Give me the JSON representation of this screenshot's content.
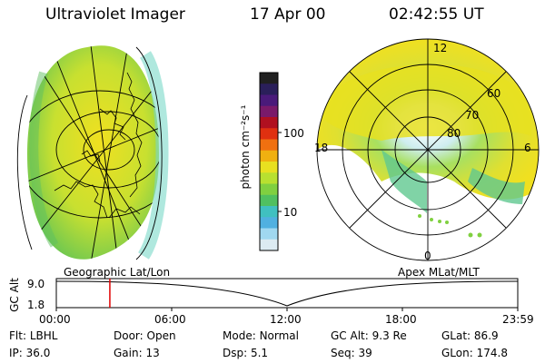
{
  "header": {
    "instrument": "Ultraviolet Imager",
    "date": "17 Apr 00",
    "time": "02:42:55 UT"
  },
  "colorbar": {
    "unit_label": "photon cm⁻²s⁻¹",
    "ticks": [
      "100",
      "10"
    ],
    "colors": [
      "#202020",
      "#2a1f5a",
      "#4a1a7a",
      "#7a1a6a",
      "#b01020",
      "#e03010",
      "#f07010",
      "#f0b010",
      "#e8e020",
      "#b8e030",
      "#80d040",
      "#50c060",
      "#40c0c0",
      "#50b0e0",
      "#a0d8f0",
      "#dcebf2"
    ]
  },
  "polar": {
    "labels": [
      "12",
      "18",
      "6",
      "0",
      "60",
      "70",
      "80"
    ]
  },
  "labels": {
    "geo": "Geographic Lat/Lon",
    "apex": "Apex MLat/MLT"
  },
  "timeline": {
    "ylabel": "GC Alt",
    "yticks": [
      "9.0",
      "1.8"
    ],
    "xticks": [
      "00:00",
      "06:00",
      "12:00",
      "18:00",
      "23:59"
    ],
    "marker_fraction": 0.116
  },
  "status": {
    "row1": [
      {
        "label": "Flt:",
        "value": "LBHL"
      },
      {
        "label": "Door:",
        "value": "Open"
      },
      {
        "label": "Mode:",
        "value": "Normal"
      },
      {
        "label": "GC Alt:",
        "value": "9.3 Re"
      },
      {
        "label": "GLat:",
        "value": "86.9"
      }
    ],
    "row2": [
      {
        "label": "IP:",
        "value": "36.0"
      },
      {
        "label": "Gain:",
        "value": "13"
      },
      {
        "label": "Dsp:",
        "value": "5.1"
      },
      {
        "label": "Seq:",
        "value": "39"
      },
      {
        "label": "GLon:",
        "value": "174.8"
      }
    ]
  }
}
